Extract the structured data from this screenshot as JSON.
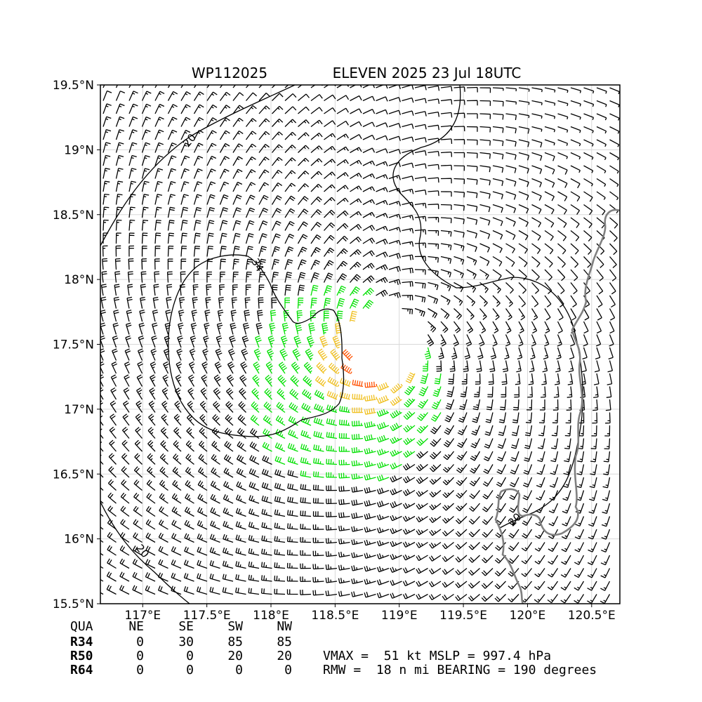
{
  "header": {
    "storm_id": "WP112025",
    "storm_title": "ELEVEN 2025 23 Jul 18UTC"
  },
  "map": {
    "lon_range": [
      116.67,
      120.72
    ],
    "lat_range": [
      15.5,
      19.5
    ],
    "lat_ticks": [
      "19.5°N",
      "19°N",
      "18.5°N",
      "18°N",
      "17.5°N",
      "17°N",
      "16.5°N",
      "16°N",
      "15.5°N"
    ],
    "lon_ticks": [
      "117°E",
      "117.5°E",
      "118°E",
      "118.5°E",
      "119°E",
      "119.5°E",
      "120°E",
      "120.5°E"
    ],
    "lat_values": [
      19.5,
      19.0,
      18.5,
      18.0,
      17.5,
      17.0,
      16.5,
      16.0,
      15.5
    ],
    "lon_values": [
      117.0,
      117.5,
      118.0,
      118.5,
      119.0,
      119.5,
      120.0,
      120.5
    ],
    "storm_center": {
      "lon": 118.9,
      "lat": 17.5
    },
    "contour_labels": [
      "20",
      "34",
      "20",
      "20"
    ],
    "wind_colors": {
      "below_34kt": "#000000",
      "34_to_50kt": "#00e000",
      "50_to_64kt": "#f0c020",
      "64kt_plus": "#ff5000"
    },
    "coastline_color": "#808080",
    "grid_color": "#d9d9d9"
  },
  "radii_table": {
    "headers": [
      "QUA",
      "NE",
      "SE",
      "SW",
      "NW"
    ],
    "rows": [
      {
        "label": "R34",
        "values": [
          "0",
          "30",
          "85",
          "85"
        ]
      },
      {
        "label": "R50",
        "values": [
          "0",
          "0",
          "20",
          "20"
        ]
      },
      {
        "label": "R64",
        "values": [
          "0",
          "0",
          "0",
          "0"
        ]
      }
    ]
  },
  "summary": {
    "line1": "VMAX =  51 kt MSLP = 997.4 hPa",
    "line2": "RMW =  18 n mi BEARING = 190 degrees"
  }
}
